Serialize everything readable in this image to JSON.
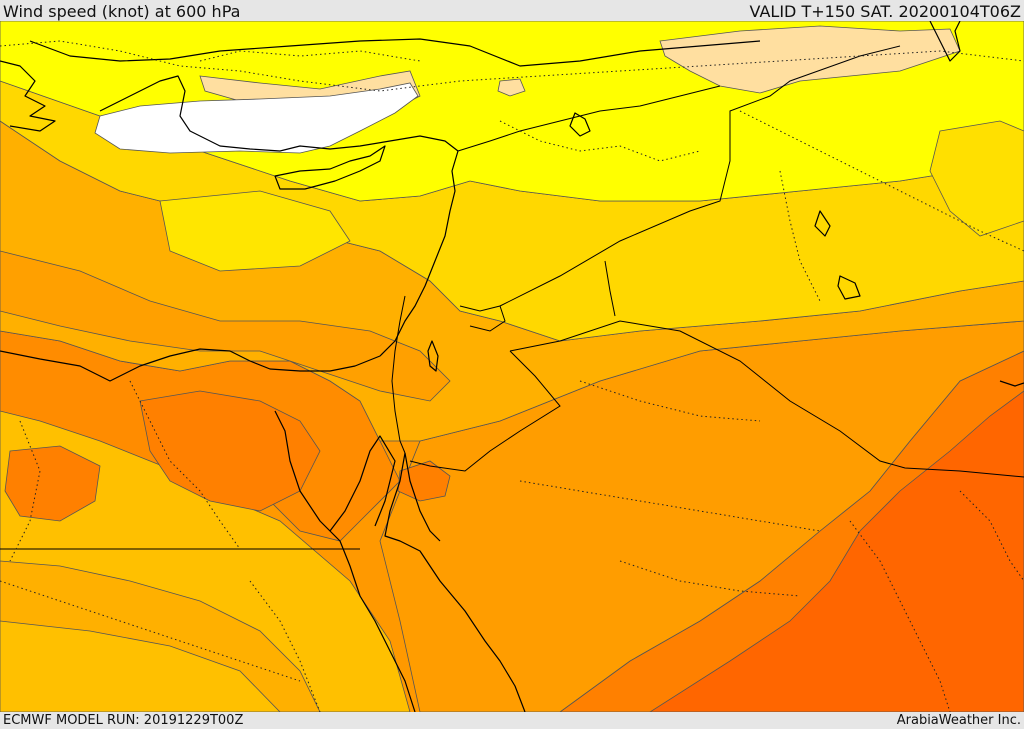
{
  "header": {
    "title": "Wind speed (knot) at 600 hPa",
    "valid": "VALID T+150 SAT. 20200104T06Z"
  },
  "footer": {
    "model_run": "ECMWF MODEL RUN: 20191229T00Z",
    "credit": "ArabiaWeather Inc."
  },
  "map": {
    "variable": "wind speed",
    "unit": "knot",
    "level": "600 hPa",
    "colors": {
      "calm_white": "#ffffff",
      "light_peach": "#ffdfa0",
      "bright_yellow": "#ffff00",
      "gold": "#ffe000",
      "amber": "#ffc800",
      "light_orange": "#ffb000",
      "orange": "#ff9900",
      "dark_orange": "#ff8000",
      "red_orange": "#ff6600",
      "coastline": "#000000"
    }
  }
}
